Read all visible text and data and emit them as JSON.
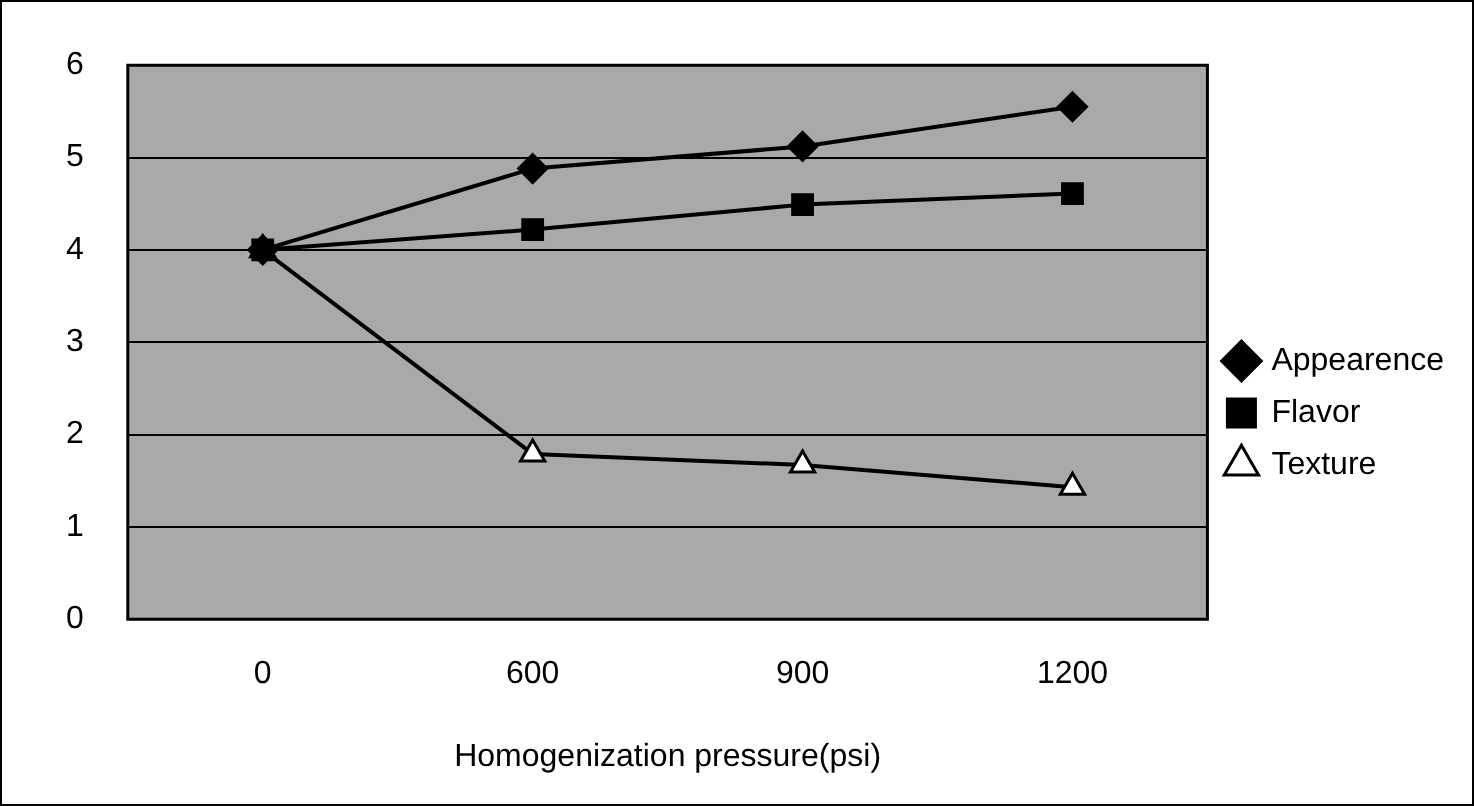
{
  "chart_data": {
    "type": "line",
    "xlabel": "Homogenization pressure(psi)",
    "categories": [
      "0",
      "600",
      "900",
      "1200"
    ],
    "series": [
      {
        "name": "Appearence",
        "color": "#000000",
        "marker": "diamond",
        "values": [
          4,
          4.88,
          5.12,
          5.55
        ]
      },
      {
        "name": "Flavor",
        "color": "#000000",
        "marker": "square",
        "values": [
          4,
          4.22,
          4.49,
          4.61
        ]
      },
      {
        "name": "Texture",
        "color": "#000000",
        "marker": "triangle",
        "values": [
          4,
          1.79,
          1.67,
          1.43
        ]
      }
    ],
    "ylim": [
      0,
      6
    ],
    "yticks": [
      0,
      1,
      2,
      3,
      4,
      5,
      6
    ],
    "grid": "y",
    "legend": "right"
  }
}
